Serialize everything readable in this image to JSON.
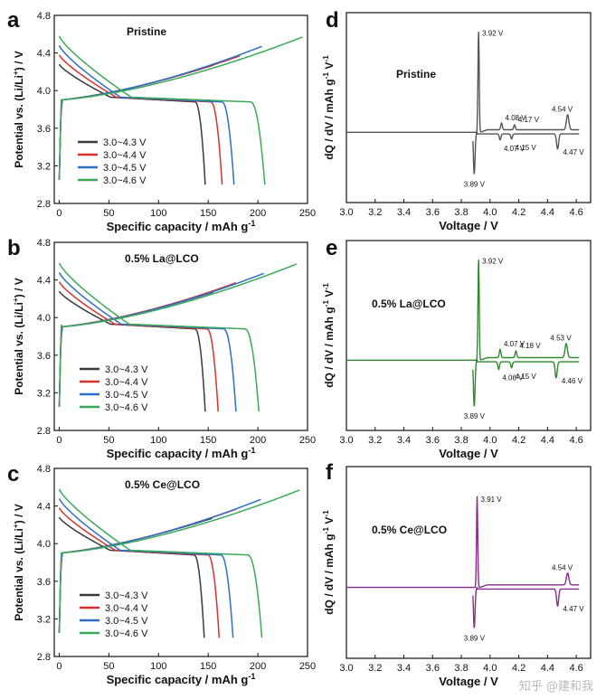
{
  "panels": [
    {
      "id": "a",
      "kind": "voltage",
      "sample": "Pristine",
      "xlabel": "Specific capacity / mAh g",
      "xlabel_sup": "-1",
      "ylabel": "Potential vs. (Li/Li",
      "ylabel_sup": "+",
      "ylabel_end": ") / V",
      "xlim": [
        -5,
        250
      ],
      "ylim": [
        2.8,
        4.8
      ],
      "xticks": [
        "0",
        "50",
        "100",
        "150",
        "200",
        "250"
      ],
      "yticks": [
        "2.8",
        "3.2",
        "3.6",
        "4.0",
        "4.4",
        "4.8"
      ],
      "legend_pos": "bottom-left",
      "series": [
        {
          "name": "3.0~4.3 V",
          "color": "#3a3a3a",
          "cap": 147,
          "charge_end": 4.3
        },
        {
          "name": "3.0~4.4 V",
          "color": "#d8322a",
          "cap": 164,
          "charge_end": 4.4
        },
        {
          "name": "3.0~4.5 V",
          "color": "#2d6fc8",
          "cap": 176,
          "charge_end": 4.5
        },
        {
          "name": "3.0~4.6 V",
          "color": "#3aaa5a",
          "cap": 207,
          "charge_end": 4.6
        }
      ]
    },
    {
      "id": "b",
      "kind": "voltage",
      "sample": "0.5% La@LCO",
      "xlabel": "Specific capacity / mAh g",
      "xlabel_sup": "-1",
      "ylabel": "Potential vs. (Li/Li",
      "ylabel_sup": "+",
      "ylabel_end": ") / V",
      "xlim": [
        -5,
        250
      ],
      "ylim": [
        2.8,
        4.8
      ],
      "xticks": [
        "0",
        "50",
        "100",
        "150",
        "200",
        "250"
      ],
      "yticks": [
        "2.8",
        "3.2",
        "3.6",
        "4.0",
        "4.4",
        "4.8"
      ],
      "legend_pos": "bottom-center",
      "series": [
        {
          "name": "3.0~4.3 V",
          "color": "#3a3a3a",
          "cap": 147,
          "charge_end": 4.3
        },
        {
          "name": "3.0~4.4 V",
          "color": "#d8322a",
          "cap": 160,
          "charge_end": 4.4
        },
        {
          "name": "3.0~4.5 V",
          "color": "#2d6fc8",
          "cap": 178,
          "charge_end": 4.5
        },
        {
          "name": "3.0~4.6 V",
          "color": "#3aaa5a",
          "cap": 201,
          "charge_end": 4.6
        }
      ]
    },
    {
      "id": "c",
      "kind": "voltage",
      "sample": "0.5% Ce@LCO",
      "xlabel": "Specific capacity / mAh g",
      "xlabel_sup": "-1",
      "ylabel": "Potential vs. (Li/Li",
      "ylabel_sup": "+",
      "ylabel_end": ") / V",
      "xlim": [
        -5,
        250
      ],
      "ylim": [
        2.8,
        4.8
      ],
      "xticks": [
        "0",
        "50",
        "100",
        "150",
        "200",
        "250"
      ],
      "yticks": [
        "2.8",
        "3.2",
        "3.6",
        "4.0",
        "4.4",
        "4.8"
      ],
      "legend_pos": "bottom-center",
      "series": [
        {
          "name": "3.0~4.3 V",
          "color": "#3a3a3a",
          "cap": 146,
          "charge_end": 4.3
        },
        {
          "name": "3.0~4.4 V",
          "color": "#d8322a",
          "cap": 161,
          "charge_end": 4.4
        },
        {
          "name": "3.0~4.5 V",
          "color": "#2d6fc8",
          "cap": 175,
          "charge_end": 4.5
        },
        {
          "name": "3.0~4.6 V",
          "color": "#3aaa5a",
          "cap": 204,
          "charge_end": 4.6
        }
      ]
    },
    {
      "id": "d",
      "kind": "dqdv",
      "sample": "Pristine",
      "color": "#555555",
      "xlabel": "Voltage / V",
      "ylabel": "dQ / dV / mAh g",
      "ylabel_sup": "-1",
      "ylabel_end": " V",
      "ylabel_sup2": "-1",
      "xlim": [
        3.0,
        4.7
      ],
      "xticks": [
        "3.0",
        "3.2",
        "3.4",
        "3.6",
        "3.8",
        "4.0",
        "4.2",
        "4.4",
        "4.6"
      ],
      "peaks": [
        {
          "label": "3.92 V",
          "x": 3.92,
          "h": 122,
          "w": 0.006
        },
        {
          "label": "4.08 V",
          "x": 4.08,
          "h": 8,
          "w": 0.008
        },
        {
          "label": "4.17 V",
          "x": 4.17,
          "h": 6,
          "w": 0.008
        },
        {
          "label": "4.54 V",
          "x": 4.54,
          "h": 18,
          "w": 0.012
        },
        {
          "label": "3.89 V",
          "x": 3.89,
          "h": -50,
          "w": 0.008
        },
        {
          "label": "4.07 V",
          "x": 4.07,
          "h": -7,
          "w": 0.008
        },
        {
          "label": "4.15 V",
          "x": 4.15,
          "h": -6,
          "w": 0.008
        },
        {
          "label": "4.47 V",
          "x": 4.47,
          "h": -18,
          "w": 0.01
        }
      ]
    },
    {
      "id": "e",
      "kind": "dqdv",
      "sample": "0.5% La@LCO",
      "color": "#2e8b2e",
      "xlabel": "Voltage / V",
      "ylabel": "dQ / dV / mAh g",
      "ylabel_sup": "-1",
      "ylabel_end": " V",
      "ylabel_sup2": "-1",
      "xlim": [
        3.0,
        4.7
      ],
      "xticks": [
        "3.0",
        "3.2",
        "3.4",
        "3.6",
        "3.8",
        "4.0",
        "4.2",
        "4.4",
        "4.6"
      ],
      "peaks": [
        {
          "label": "3.92 V",
          "x": 3.92,
          "h": 122,
          "w": 0.006
        },
        {
          "label": "4.07 V",
          "x": 4.07,
          "h": 10,
          "w": 0.008
        },
        {
          "label": "4.18 V",
          "x": 4.18,
          "h": 8,
          "w": 0.008
        },
        {
          "label": "4.53 V",
          "x": 4.53,
          "h": 17,
          "w": 0.012
        },
        {
          "label": "3.89 V",
          "x": 3.89,
          "h": -55,
          "w": 0.008
        },
        {
          "label": "4.06 V",
          "x": 4.06,
          "h": -9,
          "w": 0.008
        },
        {
          "label": "4.15 V",
          "x": 4.15,
          "h": -7,
          "w": 0.008
        },
        {
          "label": "4.46 V",
          "x": 4.46,
          "h": -19,
          "w": 0.01
        }
      ]
    },
    {
      "id": "f",
      "kind": "dqdv",
      "sample": "0.5% Ce@LCO",
      "color": "#8a2a8a",
      "xlabel": "Voltage / V",
      "ylabel": "dQ / dV / mAh g",
      "ylabel_sup": "-1",
      "ylabel_end": " V",
      "ylabel_sup2": "-1",
      "xlim": [
        3.0,
        4.7
      ],
      "xticks": [
        "3.0",
        "3.2",
        "3.4",
        "3.6",
        "3.8",
        "4.0",
        "4.2",
        "4.4",
        "4.6"
      ],
      "peaks": [
        {
          "label": "3.91 V",
          "x": 3.91,
          "h": 108,
          "w": 0.006
        },
        {
          "label": "4.54 V",
          "x": 4.54,
          "h": 14,
          "w": 0.012
        },
        {
          "label": "3.89 V",
          "x": 3.89,
          "h": -48,
          "w": 0.008
        },
        {
          "label": "4.47 V",
          "x": 4.47,
          "h": -20,
          "w": 0.01
        }
      ]
    }
  ],
  "chart_data": [
    {
      "type": "line",
      "panel": "a",
      "title": "Pristine",
      "xlabel": "Specific capacity / mAh g-1",
      "ylabel": "Potential vs. (Li/Li+) / V",
      "xlim": [
        -5,
        250
      ],
      "ylim": [
        2.8,
        4.8
      ],
      "series": [
        {
          "name": "3.0~4.3 V",
          "discharge_capacity": 147
        },
        {
          "name": "3.0~4.4 V",
          "discharge_capacity": 164
        },
        {
          "name": "3.0~4.5 V",
          "discharge_capacity": 176
        },
        {
          "name": "3.0~4.6 V",
          "discharge_capacity": 207
        }
      ]
    },
    {
      "type": "line",
      "panel": "b",
      "title": "0.5% La@LCO",
      "xlabel": "Specific capacity / mAh g-1",
      "ylabel": "Potential vs. (Li/Li+) / V",
      "xlim": [
        -5,
        250
      ],
      "ylim": [
        2.8,
        4.8
      ],
      "series": [
        {
          "name": "3.0~4.3 V",
          "discharge_capacity": 147
        },
        {
          "name": "3.0~4.4 V",
          "discharge_capacity": 160
        },
        {
          "name": "3.0~4.5 V",
          "discharge_capacity": 178
        },
        {
          "name": "3.0~4.6 V",
          "discharge_capacity": 201
        }
      ]
    },
    {
      "type": "line",
      "panel": "c",
      "title": "0.5% Ce@LCO",
      "xlabel": "Specific capacity / mAh g-1",
      "ylabel": "Potential vs. (Li/Li+) / V",
      "xlim": [
        -5,
        250
      ],
      "ylim": [
        2.8,
        4.8
      ],
      "series": [
        {
          "name": "3.0~4.3 V",
          "discharge_capacity": 146
        },
        {
          "name": "3.0~4.4 V",
          "discharge_capacity": 161
        },
        {
          "name": "3.0~4.5 V",
          "discharge_capacity": 175
        },
        {
          "name": "3.0~4.6 V",
          "discharge_capacity": 204
        }
      ]
    },
    {
      "type": "line",
      "panel": "d",
      "title": "Pristine",
      "xlabel": "Voltage / V",
      "ylabel": "dQ / dV / mAh g-1 V-1",
      "xlim": [
        3.0,
        4.7
      ],
      "oxidation_peaks_V": [
        3.92,
        4.08,
        4.17,
        4.54
      ],
      "reduction_peaks_V": [
        3.89,
        4.07,
        4.15,
        4.47
      ]
    },
    {
      "type": "line",
      "panel": "e",
      "title": "0.5% La@LCO",
      "xlabel": "Voltage / V",
      "ylabel": "dQ / dV / mAh g-1 V-1",
      "xlim": [
        3.0,
        4.7
      ],
      "oxidation_peaks_V": [
        3.92,
        4.07,
        4.18,
        4.53
      ],
      "reduction_peaks_V": [
        3.89,
        4.06,
        4.15,
        4.46
      ]
    },
    {
      "type": "line",
      "panel": "f",
      "title": "0.5% Ce@LCO",
      "xlabel": "Voltage / V",
      "ylabel": "dQ / dV / mAh g-1 V-1",
      "xlim": [
        3.0,
        4.7
      ],
      "oxidation_peaks_V": [
        3.91,
        4.54
      ],
      "reduction_peaks_V": [
        3.89,
        4.47
      ]
    }
  ],
  "watermark": "知乎 @建和我"
}
